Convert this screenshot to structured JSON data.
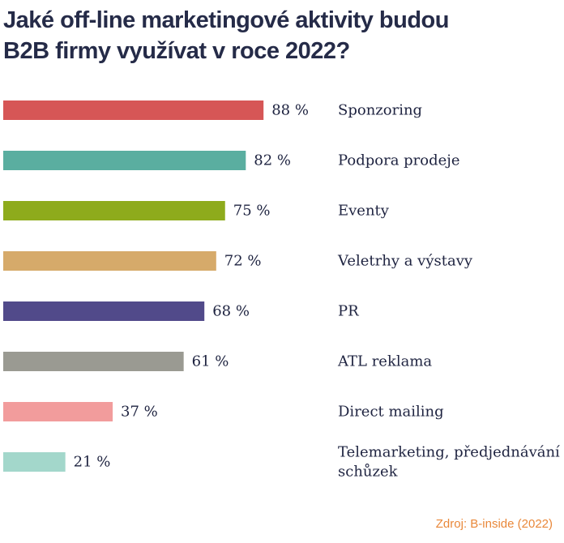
{
  "chart_data": {
    "type": "bar",
    "orientation": "horizontal",
    "title_lines": [
      "Jaké off-line marketingové aktivity budou",
      "B2B firmy využívat v roce 2022?"
    ],
    "categories": [
      "Sponzoring",
      "Podpora prodeje",
      "Eventy",
      "Veletrhy a výstavy",
      "PR",
      "ATL reklama",
      "Direct mailing",
      [
        "Telemarketing, předjednávání",
        "schůzek"
      ]
    ],
    "values": [
      88,
      82,
      75,
      72,
      68,
      61,
      37,
      21
    ],
    "value_labels": [
      "88 %",
      "82 %",
      "75 %",
      "72 %",
      "68 %",
      "61 %",
      "37 %",
      "21 %"
    ],
    "colors": [
      "#d65656",
      "#5aaea0",
      "#8eab1c",
      "#d6aa6a",
      "#514a8a",
      "#9a9a92",
      "#f29c9c",
      "#a3d7cb"
    ],
    "xlim": [
      0,
      100
    ],
    "grid": false,
    "legend": "none",
    "source": "Zdroj: B-inside (2022)"
  }
}
